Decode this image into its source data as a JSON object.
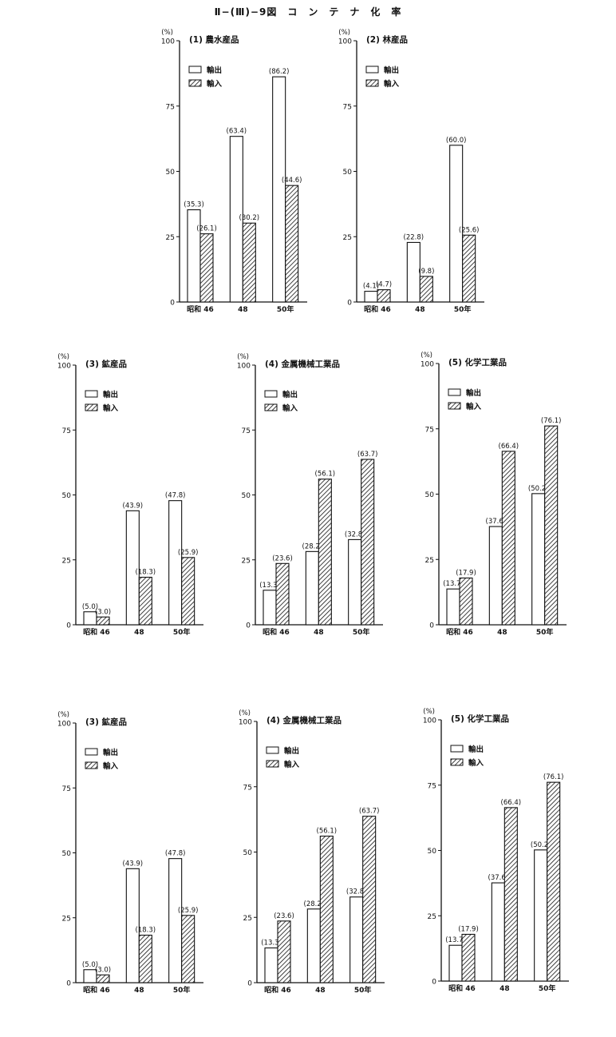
{
  "page_title": "Ⅱ−(Ⅲ)−9図　コ　ン　テ　ナ　化　率",
  "colors": {
    "ink": "#111111",
    "paper": "#ffffff"
  },
  "chart_data": [
    {
      "type": "bar",
      "title": "(1) 農水産品",
      "ylabel": "(%)",
      "ylim": [
        0,
        100
      ],
      "yticks": [
        0,
        25,
        50,
        75,
        100
      ],
      "categories": [
        "昭和 46",
        "48",
        "50年"
      ],
      "legend": "top-left",
      "series": [
        {
          "name": "輸出",
          "pattern": "white",
          "values": [
            35.3,
            63.4,
            86.2
          ],
          "labels": [
            "(35.3)",
            "(63.4)",
            "(86.2)"
          ]
        },
        {
          "name": "輸入",
          "pattern": "hatched",
          "values": [
            26.1,
            30.2,
            44.6
          ],
          "labels": [
            "(26.1)",
            "(30.2)",
            "(44.6)"
          ]
        }
      ]
    },
    {
      "type": "bar",
      "title": "(2) 林産品",
      "ylabel": "(%)",
      "ylim": [
        0,
        100
      ],
      "yticks": [
        0,
        25,
        50,
        75,
        100
      ],
      "categories": [
        "昭和 46",
        "48",
        "50年"
      ],
      "legend": "top-left",
      "series": [
        {
          "name": "輸出",
          "pattern": "white",
          "values": [
            4.1,
            22.8,
            60.0
          ],
          "labels": [
            "(4.1)",
            "(22.8)",
            "(60.0)"
          ]
        },
        {
          "name": "輸入",
          "pattern": "hatched",
          "values": [
            4.7,
            9.8,
            25.6
          ],
          "labels": [
            "(4.7)",
            "(9.8)",
            "(25.6)"
          ]
        }
      ]
    },
    {
      "type": "bar",
      "title": "(3) 鉱産品",
      "ylabel": "(%)",
      "ylim": [
        0,
        100
      ],
      "yticks": [
        0,
        25,
        50,
        75,
        100
      ],
      "categories": [
        "昭和 46",
        "48",
        "50年"
      ],
      "legend": "top-left",
      "series": [
        {
          "name": "輸出",
          "pattern": "white",
          "values": [
            5.0,
            43.9,
            47.8
          ],
          "labels": [
            "(5.0)",
            "(43.9)",
            "(47.8)"
          ]
        },
        {
          "name": "輸入",
          "pattern": "hatched",
          "values": [
            3.0,
            18.3,
            25.9
          ],
          "labels": [
            "(3.0)",
            "(18.3)",
            "(25.9)"
          ]
        }
      ]
    },
    {
      "type": "bar",
      "title": "(4) 金属機械工業品",
      "ylabel": "(%)",
      "ylim": [
        0,
        100
      ],
      "yticks": [
        0,
        25,
        50,
        75,
        100
      ],
      "categories": [
        "昭和 46",
        "48",
        "50年"
      ],
      "legend": "top-left",
      "series": [
        {
          "name": "輸出",
          "pattern": "white",
          "values": [
            13.3,
            28.2,
            32.8
          ],
          "labels": [
            "(13.3)",
            "(28.2)",
            "(32.8)"
          ]
        },
        {
          "name": "輸入",
          "pattern": "hatched",
          "values": [
            23.6,
            56.1,
            63.7
          ],
          "labels": [
            "(23.6)",
            "(56.1)",
            "(63.7)"
          ]
        }
      ]
    },
    {
      "type": "bar",
      "title": "(5) 化学工業品",
      "ylabel": "(%)",
      "ylim": [
        0,
        100
      ],
      "yticks": [
        0,
        25,
        50,
        75,
        100
      ],
      "categories": [
        "昭和 46",
        "48",
        "50年"
      ],
      "legend": "top-left",
      "series": [
        {
          "name": "輸出",
          "pattern": "white",
          "values": [
            13.7,
            37.6,
            50.2
          ],
          "labels": [
            "(13.7)",
            "(37.6)",
            "(50.2)"
          ]
        },
        {
          "name": "輸入",
          "pattern": "hatched",
          "values": [
            17.9,
            66.4,
            76.1
          ],
          "labels": [
            "(17.9)",
            "(66.4)",
            "(76.1)"
          ]
        }
      ]
    },
    {
      "type": "bar",
      "title": "(3) 鉱産品",
      "ylabel": "(%)",
      "ylim": [
        0,
        100
      ],
      "yticks": [
        0,
        25,
        50,
        75,
        100
      ],
      "categories": [
        "昭和 46",
        "48",
        "50年"
      ],
      "legend": "top-left",
      "series": [
        {
          "name": "輸出",
          "pattern": "white",
          "values": [
            5.0,
            43.9,
            47.8
          ],
          "labels": [
            "(5.0)",
            "(43.9)",
            "(47.8)"
          ]
        },
        {
          "name": "輸入",
          "pattern": "hatched",
          "values": [
            3.0,
            18.3,
            25.9
          ],
          "labels": [
            "(3.0)",
            "(18.3)",
            "(25.9)"
          ]
        }
      ]
    },
    {
      "type": "bar",
      "title": "(4) 金属機械工業品",
      "ylabel": "(%)",
      "ylim": [
        0,
        100
      ],
      "yticks": [
        0,
        25,
        50,
        75,
        100
      ],
      "categories": [
        "昭和 46",
        "48",
        "50年"
      ],
      "legend": "top-left",
      "series": [
        {
          "name": "輸出",
          "pattern": "white",
          "values": [
            13.3,
            28.2,
            32.8
          ],
          "labels": [
            "(13.3)",
            "(28.2)",
            "(32.8)"
          ]
        },
        {
          "name": "輸入",
          "pattern": "hatched",
          "values": [
            23.6,
            56.1,
            63.7
          ],
          "labels": [
            "(23.6)",
            "(56.1)",
            "(63.7)"
          ]
        }
      ]
    },
    {
      "type": "bar",
      "title": "(5) 化学工業品",
      "ylabel": "(%)",
      "ylim": [
        0,
        100
      ],
      "yticks": [
        0,
        25,
        50,
        75,
        100
      ],
      "categories": [
        "昭和 46",
        "48",
        "50年"
      ],
      "legend": "top-left",
      "series": [
        {
          "name": "輸出",
          "pattern": "white",
          "values": [
            13.7,
            37.6,
            50.2
          ],
          "labels": [
            "(13.7)",
            "(37.6)",
            "(50.2)"
          ]
        },
        {
          "name": "輸入",
          "pattern": "hatched",
          "values": [
            17.9,
            66.4,
            76.1
          ],
          "labels": [
            "(17.9)",
            "(66.4)",
            "(76.1)"
          ]
        }
      ]
    }
  ]
}
